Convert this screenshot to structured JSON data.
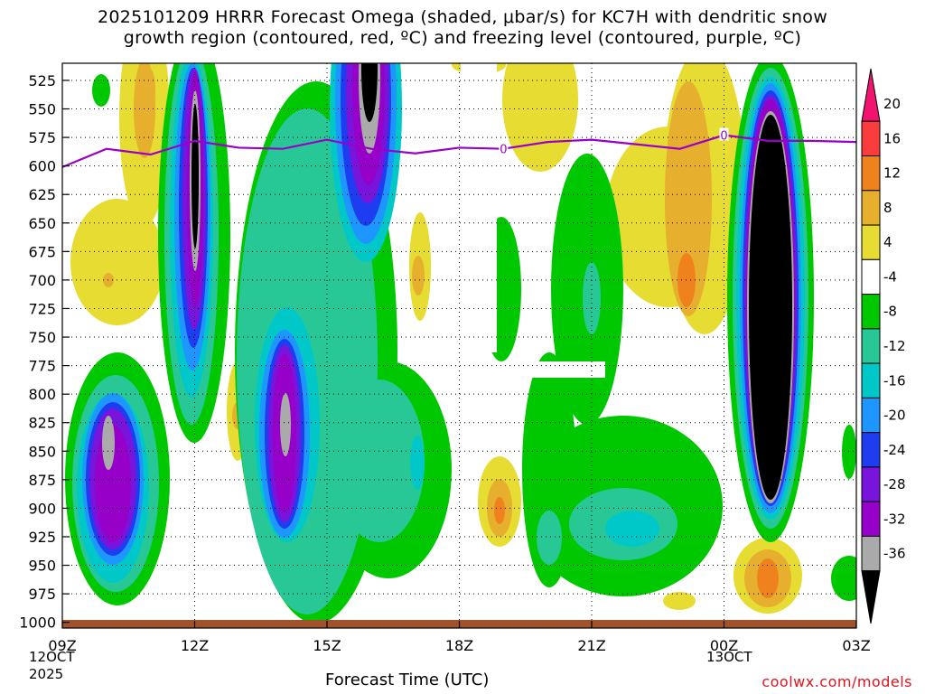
{
  "title_line1": "2025101209 HRRR Forecast Omega (shaded, μbar/s) for KC7H with dendritic snow",
  "title_line2": "growth region (contoured, red, ºC) and freezing level (contoured, purple, ºC)",
  "xlabel": "Forecast Time (UTC)",
  "credit": "coolwx.com/models",
  "date_start": [
    "12OCT",
    "2025"
  ],
  "date_mid": "13OCT",
  "freezing_label": "0",
  "chart_data": {
    "type": "heatmap",
    "title": "2025101209 HRRR Forecast Omega (shaded, μbar/s) for KC7H with dendritic snow growth region (contoured, red, ºC) and freezing level (contoured, purple, ºC)",
    "xlabel": "Forecast Time (UTC)",
    "ylabel": "",
    "x_ticks": [
      "09Z",
      "12Z",
      "15Z",
      "18Z",
      "21Z",
      "00Z",
      "03Z"
    ],
    "x_range_hours": [
      9,
      27
    ],
    "y_ticks": [
      525,
      550,
      575,
      600,
      625,
      650,
      675,
      700,
      725,
      750,
      775,
      800,
      825,
      850,
      875,
      900,
      925,
      950,
      975,
      1000
    ],
    "y_range_hpa": [
      510,
      1005
    ],
    "grid": true,
    "colorbar": {
      "labels": [
        20,
        16,
        12,
        8,
        4,
        -4,
        -8,
        -12,
        -16,
        -20,
        -24,
        -28,
        -32,
        -36
      ],
      "colors": [
        "#f0146e",
        "#fa3c3c",
        "#f0821e",
        "#e6af2d",
        "#e6dc32",
        "#ffffff",
        "#00c800",
        "#28c896",
        "#00c8c8",
        "#1e96ff",
        "#1e3cf0",
        "#7814dc",
        "#9600c8",
        "#aaaaaa",
        "#000000"
      ]
    },
    "freezing_level": {
      "x_hours": [
        9,
        10,
        11,
        12,
        13,
        14,
        15,
        16,
        17,
        18,
        19,
        20,
        21,
        22,
        23,
        24,
        25,
        26,
        27
      ],
      "pressure_hpa": [
        601,
        585,
        590,
        578,
        584,
        585,
        577,
        585,
        589,
        584,
        585,
        579,
        577,
        581,
        585,
        573,
        578,
        578,
        579
      ]
    },
    "omega_features": [
      {
        "center_hour": 10.2,
        "center_hpa": 860,
        "min": -32
      },
      {
        "center_hour": 12.0,
        "center_hpa": 600,
        "min": -32
      },
      {
        "center_hour": 14.0,
        "center_hpa": 810,
        "min": -32
      },
      {
        "center_hour": 16.0,
        "center_hpa": 525,
        "min": -36
      },
      {
        "center_hour": 25.0,
        "center_hpa": 710,
        "min": -36
      },
      {
        "center_hour": 25.3,
        "center_hpa": 950,
        "min": 12
      },
      {
        "center_hour": 19.8,
        "center_hpa": 880,
        "min": 12
      },
      {
        "center_hour": 23.0,
        "center_hpa": 675,
        "min": 12
      },
      {
        "center_hour": 11.0,
        "center_hpa": 540,
        "min": 12
      }
    ]
  }
}
